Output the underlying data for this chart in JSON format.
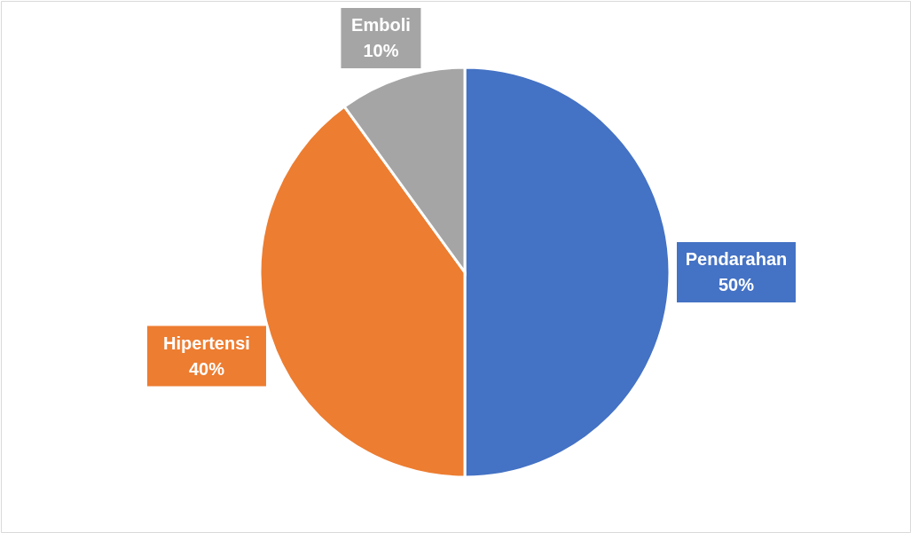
{
  "chart_data": {
    "type": "pie",
    "categories": [
      "Pendarahan",
      "Hipertensi",
      "Emboli"
    ],
    "values": [
      50,
      40,
      10
    ],
    "colors": [
      "#4472c4",
      "#ed7d31",
      "#a5a5a5"
    ],
    "value_labels": [
      "50%",
      "40%",
      "10%"
    ]
  }
}
